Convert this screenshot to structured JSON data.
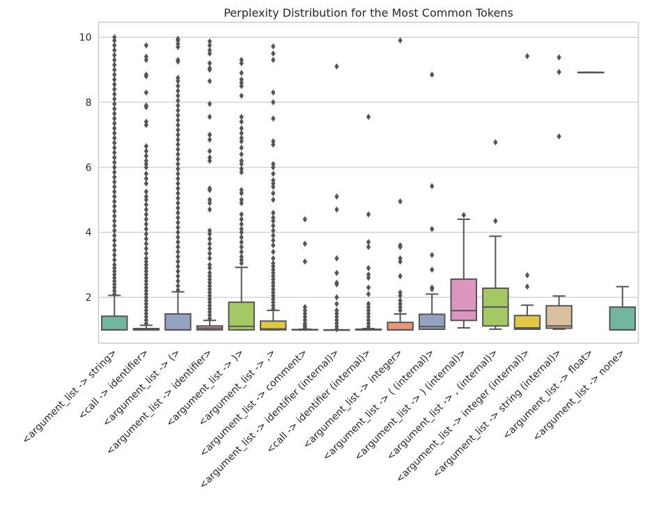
{
  "chart_data": {
    "type": "box",
    "title": "Perplexity Distribution for the Most Common Tokens",
    "xlabel": "",
    "ylabel": "",
    "ylim": [
      0.59,
      10.46
    ],
    "yticks": [
      2,
      4,
      6,
      8,
      10
    ],
    "grid": true,
    "palette": [
      "#72b6a1",
      "#e99675",
      "#95a3c3",
      "#db96c0",
      "#a3c864",
      "#e2c644",
      "#d9c19e",
      "#b3b3b3"
    ],
    "line_color": "#555555",
    "categories": [
      "<argument_list -> string>",
      "<call -> identifier>",
      "<argument_list -> (>",
      "<argument_list -> identifier>",
      "<argument_list -> )>",
      "<argument_list -> ,>",
      "<argument_list -> comment>",
      "<argument_list -> identifier (internal)>",
      "<call -> identifier (internal)>",
      "<argument_list -> integer>",
      "<argument_list -> ( (internal)>",
      "<argument_list -> ) (internal)>",
      "<argument_list -> , (internal)>",
      "<argument_list -> integer (internal)>",
      "<argument_list -> string (internal)>",
      "<argument_list -> float>",
      "<argument_list -> none>"
    ],
    "boxes": [
      {
        "whislo": 1.0,
        "q1": 1.0,
        "med": 1.0,
        "q3": 1.42,
        "whishi": 2.06,
        "fliers": [
          2.1,
          2.2,
          2.3,
          2.4,
          2.5,
          2.6,
          2.7,
          2.8,
          2.9,
          3.0,
          3.15,
          3.3,
          3.45,
          3.6,
          3.75,
          3.9,
          4.05,
          4.2,
          4.35,
          4.5,
          4.65,
          4.8,
          4.95,
          5.1,
          5.25,
          5.4,
          5.55,
          5.7,
          5.85,
          6.0,
          6.15,
          6.3,
          6.45,
          6.6,
          6.75,
          6.9,
          7.05,
          7.2,
          7.35,
          7.5,
          7.65,
          7.8,
          7.95,
          8.1,
          8.25,
          8.4,
          8.55,
          8.7,
          8.85,
          9.0,
          9.15,
          9.3,
          9.45,
          9.6,
          9.75,
          9.9,
          10.0
        ]
      },
      {
        "whislo": 1.0,
        "q1": 1.0,
        "med": 1.0,
        "q3": 1.04,
        "whishi": 1.14,
        "fliers": [
          1.2,
          1.3,
          1.4,
          1.5,
          1.6,
          1.7,
          1.8,
          1.9,
          2.0,
          2.1,
          2.2,
          2.3,
          2.4,
          2.5,
          2.6,
          2.7,
          2.8,
          2.9,
          3.0,
          3.1,
          3.2,
          3.35,
          3.5,
          3.65,
          3.8,
          3.95,
          4.1,
          4.25,
          4.4,
          4.55,
          4.7,
          4.85,
          5.0,
          5.1,
          5.25,
          5.5,
          5.65,
          5.8,
          6.0,
          6.1,
          6.2,
          6.35,
          6.5,
          6.65,
          7.3,
          7.4,
          7.85,
          7.9,
          8.3,
          8.8,
          8.85,
          9.3,
          9.4,
          9.75
        ]
      },
      {
        "whislo": 1.0,
        "q1": 1.0,
        "med": 1.0,
        "q3": 1.49,
        "whishi": 2.17,
        "fliers": [
          2.22,
          2.35,
          2.5,
          2.65,
          2.8,
          2.95,
          3.1,
          3.25,
          3.4,
          3.55,
          3.7,
          3.85,
          4.0,
          4.15,
          4.3,
          4.45,
          4.6,
          4.75,
          4.9,
          5.05,
          5.2,
          5.35,
          5.5,
          5.65,
          5.8,
          5.95,
          6.1,
          6.25,
          6.4,
          6.55,
          6.7,
          6.85,
          7.0,
          7.15,
          7.3,
          7.45,
          7.6,
          7.75,
          7.9,
          8.05,
          8.2,
          8.35,
          8.5,
          8.65,
          8.75,
          9.25,
          9.3,
          9.7,
          9.8,
          9.9,
          9.95
        ]
      },
      {
        "whislo": 1.0,
        "q1": 1.0,
        "med": 1.05,
        "q3": 1.12,
        "whishi": 1.29,
        "fliers": [
          1.35,
          1.45,
          1.55,
          1.65,
          1.75,
          1.85,
          1.95,
          2.05,
          2.15,
          2.25,
          2.35,
          2.45,
          2.55,
          2.65,
          2.75,
          2.9,
          3.0,
          3.2,
          3.35,
          3.5,
          3.65,
          3.8,
          3.95,
          4.05,
          4.7,
          4.9,
          5.0,
          5.3,
          5.35,
          6.2,
          6.3,
          6.5,
          6.85,
          7.0,
          7.55,
          7.95,
          8.65,
          9.0,
          9.05,
          9.2,
          9.5,
          9.6,
          9.75,
          9.87
        ]
      },
      {
        "whislo": 1.0,
        "q1": 1.0,
        "med": 1.11,
        "q3": 1.85,
        "whishi": 2.92,
        "fliers": [
          3.05,
          3.15,
          3.25,
          3.4,
          3.55,
          3.7,
          3.85,
          4.0,
          4.1,
          4.25,
          4.4,
          4.55,
          4.9,
          5.0,
          5.2,
          5.3,
          5.85,
          5.95,
          6.1,
          6.2,
          6.4,
          6.6,
          6.8,
          6.9,
          7.05,
          7.2,
          7.4,
          7.55,
          8.2,
          8.5,
          8.6,
          8.7,
          8.9,
          9.2,
          9.3
        ]
      },
      {
        "whislo": 1.0,
        "q1": 1.0,
        "med": 1.03,
        "q3": 1.27,
        "whishi": 1.6,
        "fliers": [
          1.65,
          1.75,
          1.85,
          1.95,
          2.05,
          2.15,
          2.25,
          2.35,
          2.45,
          2.55,
          2.65,
          2.75,
          2.85,
          2.95,
          3.05,
          3.2,
          3.4,
          3.6,
          3.75,
          3.9,
          4.05,
          4.2,
          4.35,
          4.45,
          4.6,
          5.0,
          5.2,
          5.4,
          5.5,
          5.6,
          5.8,
          6.0,
          6.1,
          6.7,
          6.8,
          7.5,
          8.0,
          8.3,
          9.3,
          9.5,
          9.72
        ]
      },
      {
        "whislo": 1.0,
        "q1": 1.0,
        "med": 1.0,
        "q3": 1.01,
        "whishi": 1.02,
        "fliers": [
          1.05,
          1.1,
          1.15,
          1.2,
          1.3,
          1.4,
          1.5,
          1.6,
          1.7,
          3.1,
          3.65,
          4.4
        ]
      },
      {
        "whislo": 1.0,
        "q1": 1.0,
        "med": 1.0,
        "q3": 1.0,
        "whishi": 1.0,
        "fliers": [
          1.02,
          1.1,
          1.2,
          1.3,
          1.4,
          1.5,
          1.6,
          1.8,
          2.0,
          2.4,
          2.45,
          2.75,
          3.2,
          4.7,
          5.1,
          9.1
        ]
      },
      {
        "whislo": 1.0,
        "q1": 1.0,
        "med": 1.0,
        "q3": 1.02,
        "whishi": 1.04,
        "fliers": [
          1.1,
          1.2,
          1.3,
          1.4,
          1.5,
          1.6,
          1.7,
          1.8,
          2.1,
          2.3,
          2.6,
          2.7,
          2.9,
          3.55,
          3.7,
          4.55,
          7.55
        ]
      },
      {
        "whislo": 1.0,
        "q1": 1.0,
        "med": 1.0,
        "q3": 1.23,
        "whishi": 1.49,
        "fliers": [
          1.6,
          1.7,
          1.8,
          1.9,
          2.05,
          2.15,
          2.65,
          3.1,
          3.2,
          3.55,
          3.6,
          4.95,
          9.9
        ]
      },
      {
        "whislo": 1.02,
        "q1": 1.02,
        "med": 1.1,
        "q3": 1.48,
        "whishi": 2.1,
        "fliers": [
          2.25,
          2.3,
          2.85,
          3.3,
          4.1,
          5.42,
          8.85
        ]
      },
      {
        "whislo": 1.06,
        "q1": 1.29,
        "med": 1.59,
        "q3": 2.56,
        "whishi": 4.4,
        "fliers": [
          4.53
        ]
      },
      {
        "whislo": 1.02,
        "q1": 1.12,
        "med": 1.7,
        "q3": 2.28,
        "whishi": 3.88,
        "fliers": [
          4.35,
          6.77
        ]
      },
      {
        "whislo": 1.02,
        "q1": 1.02,
        "med": 1.06,
        "q3": 1.44,
        "whishi": 1.76,
        "fliers": [
          2.33,
          2.68,
          9.42
        ]
      },
      {
        "whislo": 1.02,
        "q1": 1.05,
        "med": 1.12,
        "q3": 1.74,
        "whishi": 2.04,
        "fliers": [
          6.95,
          8.93,
          9.38
        ]
      },
      {
        "whislo": 8.92,
        "q1": 8.92,
        "med": 8.92,
        "q3": 8.92,
        "whishi": 8.92,
        "fliers": []
      },
      {
        "whislo": 1.0,
        "q1": 1.0,
        "med": 1.0,
        "q3": 1.7,
        "whishi": 2.33,
        "fliers": []
      }
    ]
  }
}
